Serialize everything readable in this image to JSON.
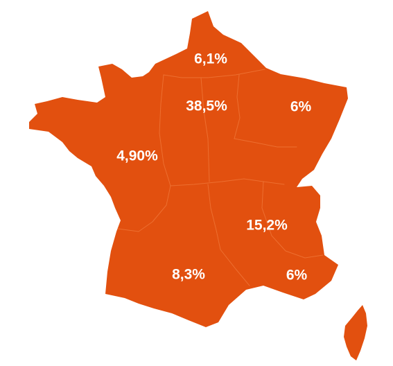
{
  "map": {
    "fill_color": "#e2500f",
    "border_color": "#f07a3c",
    "label_color": "#ffffff",
    "regions": [
      {
        "id": "nord",
        "label": "6,1%"
      },
      {
        "id": "ile-de-france",
        "label": "38,5%"
      },
      {
        "id": "est",
        "label": "6%"
      },
      {
        "id": "ouest",
        "label": "4,90%"
      },
      {
        "id": "rhone-alpes",
        "label": "15,2%"
      },
      {
        "id": "sud-ouest",
        "label": "8,3%"
      },
      {
        "id": "paca",
        "label": "6%"
      }
    ]
  }
}
